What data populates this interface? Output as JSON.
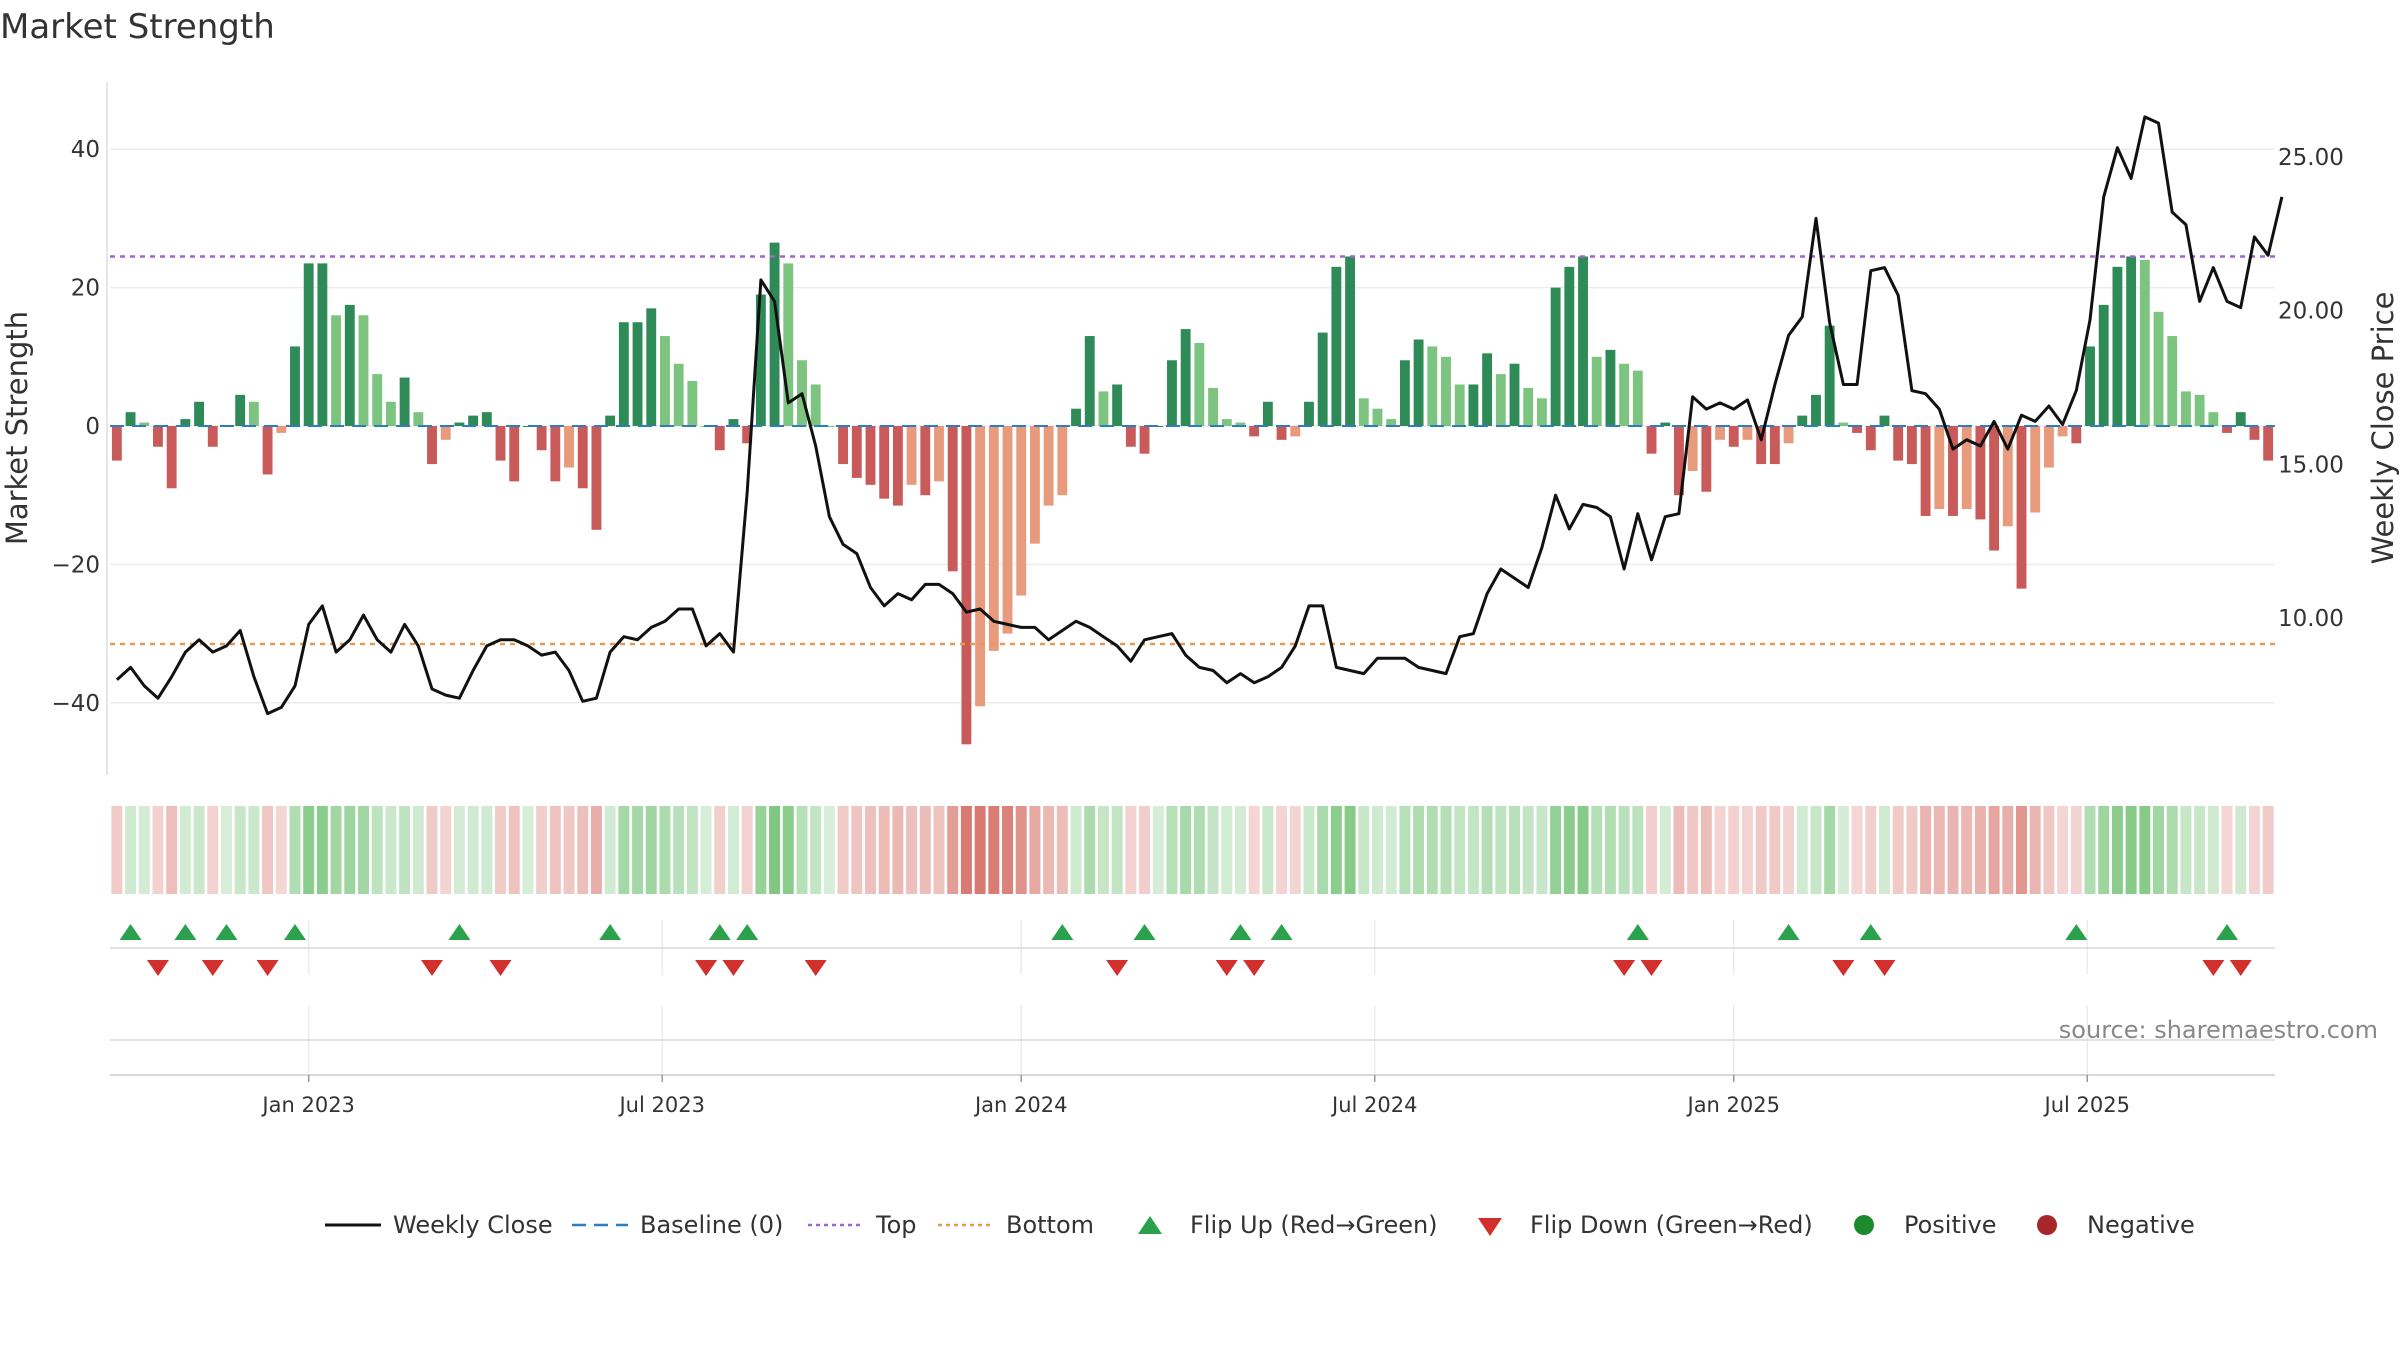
{
  "chart_data": {
    "type": "bar",
    "title": "Market Strength",
    "ylabel": "Market Strength",
    "y2label": "Weekly Close Price",
    "ylim": [
      -50,
      50
    ],
    "y2lim": [
      5.0,
      27.5
    ],
    "yticks": [
      "40",
      "20",
      "0",
      "−20",
      "−40"
    ],
    "yticks_values": [
      40,
      20,
      0,
      -20,
      -40
    ],
    "y2ticks": [
      "25.00",
      "20.00",
      "15.00",
      "10.00"
    ],
    "y2ticks_values": [
      25,
      20,
      15,
      10
    ],
    "xticks": [
      "Jan 2023",
      "Jul 2023",
      "Jan 2024",
      "Jul 2024",
      "Jan 2025",
      "Jul 2025"
    ],
    "xticks_weeks": [
      14.5,
      40.3,
      66.5,
      92.3,
      118.5,
      144.3
    ],
    "top_level": 24.5,
    "bottom_level": -31.5,
    "grid": true,
    "legend_position": "bottom",
    "source": "source: sharemaestro.com",
    "strength": [
      -5,
      2,
      0.5,
      -3,
      -9,
      1,
      3.5,
      -3,
      0,
      4.5,
      3.5,
      -7,
      -1,
      11.5,
      23.5,
      23.5,
      16,
      17.5,
      16,
      7.5,
      3.5,
      7,
      2,
      -5.5,
      -2,
      0.5,
      1.5,
      2,
      -5,
      -8,
      0,
      -3.5,
      -8,
      -6,
      -9,
      -15,
      1.5,
      15,
      15,
      17,
      13,
      9,
      6.5,
      0,
      -3.5,
      1,
      -2.5,
      19,
      26.5,
      23.5,
      9.5,
      6,
      0,
      -5.5,
      -7.5,
      -8.5,
      -10.5,
      -11.5,
      -8.5,
      -10,
      -8,
      -21,
      -46,
      -40.5,
      -32.5,
      -30,
      -24.5,
      -17,
      -11.5,
      -10,
      2.5,
      13,
      5,
      6,
      -3,
      -4,
      0,
      9.5,
      14,
      12,
      5.5,
      1,
      0.5,
      -1.5,
      3.5,
      -2,
      -1.5,
      3.5,
      13.5,
      23,
      24.5,
      4,
      2.5,
      1,
      9.5,
      12.5,
      11.5,
      10,
      6,
      6,
      10.5,
      7.5,
      9,
      5.5,
      4,
      20,
      23,
      24.5,
      10,
      11,
      9,
      8,
      -4,
      0.5,
      -10,
      -6.5,
      -9.5,
      -2,
      -3,
      -2,
      -5.5,
      -5.5,
      -2.5,
      1.5,
      4.5,
      14.5,
      0.5,
      -1,
      -3.5,
      1.5,
      -5,
      -5.5,
      -13,
      -12,
      -13,
      -12,
      -13.5,
      -18,
      -14.5,
      -23.5,
      -12.5,
      -6,
      -1.5,
      -2.5,
      11.5,
      17.5,
      23,
      24.5,
      24,
      16.5,
      13,
      5,
      4.5,
      2,
      -1,
      2,
      -2,
      -5
    ],
    "weekly_close": [
      8.0,
      8.4,
      7.8,
      7.4,
      8.1,
      8.9,
      9.3,
      8.9,
      9.1,
      9.6,
      8.1,
      6.9,
      7.1,
      7.8,
      9.8,
      10.4,
      8.9,
      9.3,
      10.1,
      9.3,
      8.9,
      9.8,
      9.1,
      7.7,
      7.5,
      7.4,
      8.3,
      9.1,
      9.3,
      9.3,
      9.1,
      8.8,
      8.9,
      8.3,
      7.3,
      7.4,
      8.9,
      9.4,
      9.3,
      9.7,
      9.9,
      10.3,
      10.3,
      9.1,
      9.5,
      8.9,
      14.1,
      21.0,
      20.3,
      17.0,
      17.3,
      15.6,
      13.3,
      12.4,
      12.1,
      11.0,
      10.4,
      10.8,
      10.6,
      11.1,
      11.1,
      10.8,
      10.2,
      10.3,
      9.9,
      9.8,
      9.7,
      9.7,
      9.3,
      9.6,
      9.9,
      9.7,
      9.4,
      9.1,
      8.6,
      9.3,
      9.4,
      9.5,
      8.8,
      8.4,
      8.3,
      7.9,
      8.2,
      7.9,
      8.1,
      8.4,
      9.1,
      10.4,
      10.4,
      8.4,
      8.3,
      8.2,
      8.7,
      8.7,
      8.7,
      8.4,
      8.3,
      8.2,
      9.4,
      9.5,
      10.8,
      11.6,
      11.3,
      11.0,
      12.3,
      14.0,
      12.9,
      13.7,
      13.6,
      13.3,
      11.6,
      13.4,
      11.9,
      13.3,
      13.4,
      17.2,
      16.8,
      17.0,
      16.8,
      17.1,
      15.8,
      17.6,
      19.2,
      19.8,
      23.0,
      19.6,
      17.6,
      17.6,
      21.3,
      21.4,
      20.5,
      17.4,
      17.3,
      16.8,
      15.5,
      15.8,
      15.6,
      16.4,
      15.5,
      16.6,
      16.4,
      16.9,
      16.3,
      17.4,
      19.7,
      23.7,
      25.3,
      24.3,
      26.3,
      26.1,
      23.2,
      22.8,
      20.3,
      21.4,
      20.3,
      20.1,
      22.4,
      21.8,
      23.7
    ],
    "flip_up_weeks": [
      1,
      5,
      8,
      13,
      25,
      36,
      44,
      46,
      69,
      75,
      82,
      85,
      111,
      122,
      128,
      143,
      154
    ],
    "flip_down_weeks": [
      3,
      7,
      11,
      23,
      28,
      43,
      45,
      51,
      73,
      81,
      83,
      110,
      112,
      126,
      129,
      153,
      155
    ],
    "series": [
      {
        "name": "Weekly Close",
        "color": "#111111"
      },
      {
        "name": "Baseline (0)",
        "color": "#2e7dbd"
      },
      {
        "name": "Top",
        "color": "#a066cc"
      },
      {
        "name": "Bottom",
        "color": "#e39a55"
      },
      {
        "name": "Flip Up (Red→Green)",
        "color": "#2aa14a"
      },
      {
        "name": "Flip Down (Green→Red)",
        "color": "#d1302c"
      },
      {
        "name": "Positive",
        "color": "#1e8a2e"
      },
      {
        "name": "Negative",
        "color": "#a8262a"
      }
    ],
    "colors": {
      "pos_strong": "#2e8b57",
      "pos_light": "#7cc47f",
      "neg_strong": "#c95a5a",
      "neg_light": "#e89a7c"
    }
  }
}
